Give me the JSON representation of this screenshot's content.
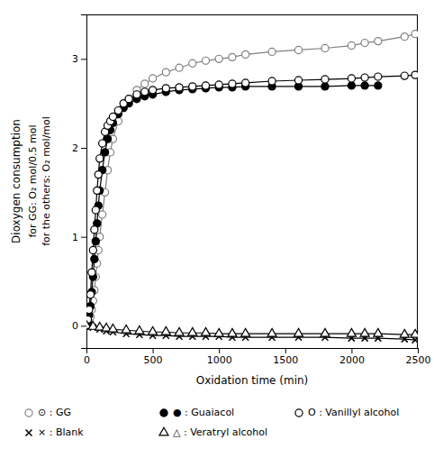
{
  "chart_data": {
    "type": "line",
    "xlabel": "Oxidation time (min)",
    "ylabel": [
      "Dioxygen consumption",
      "for GG: O₂ mol/0.5 mol",
      "for the others: O₂ mol/mol"
    ],
    "xlim": [
      0,
      2500
    ],
    "ylim": [
      -0.25,
      3.5
    ],
    "xticks": [
      0,
      500,
      1000,
      1500,
      2000,
      2500
    ],
    "yticks": [
      0,
      1,
      2,
      3
    ],
    "grid": false,
    "legend": "bottom",
    "series": [
      {
        "name": "⊙ : GG",
        "color": "gray",
        "marker": "circle-open",
        "x": [
          0,
          10,
          20,
          30,
          40,
          50,
          60,
          70,
          80,
          90,
          100,
          120,
          140,
          160,
          180,
          200,
          240,
          280,
          320,
          380,
          440,
          500,
          600,
          700,
          800,
          900,
          1000,
          1100,
          1200,
          1400,
          1600,
          1800,
          2000,
          2100,
          2200,
          2400,
          2480
        ],
        "values": [
          0,
          0.02,
          0.05,
          0.1,
          0.18,
          0.28,
          0.4,
          0.55,
          0.7,
          0.85,
          1.0,
          1.25,
          1.5,
          1.75,
          1.95,
          2.1,
          2.3,
          2.45,
          2.55,
          2.65,
          2.72,
          2.78,
          2.85,
          2.9,
          2.95,
          2.98,
          3.0,
          3.02,
          3.05,
          3.08,
          3.1,
          3.12,
          3.15,
          3.18,
          3.2,
          3.25,
          3.28
        ]
      },
      {
        "name": "● : Guaiacol",
        "color": "black",
        "marker": "circle",
        "x": [
          0,
          10,
          20,
          30,
          40,
          50,
          60,
          70,
          80,
          90,
          100,
          120,
          140,
          160,
          180,
          200,
          240,
          280,
          320,
          380,
          440,
          500,
          600,
          700,
          800,
          900,
          1000,
          1100,
          1200,
          1400,
          1600,
          1800,
          2000,
          2100,
          2200
        ],
        "values": [
          0,
          0.05,
          0.12,
          0.22,
          0.38,
          0.55,
          0.75,
          0.95,
          1.15,
          1.35,
          1.52,
          1.75,
          1.95,
          2.1,
          2.2,
          2.28,
          2.38,
          2.45,
          2.5,
          2.55,
          2.58,
          2.6,
          2.63,
          2.65,
          2.66,
          2.67,
          2.68,
          2.68,
          2.69,
          2.69,
          2.69,
          2.69,
          2.7,
          2.7,
          2.7
        ]
      },
      {
        "name": "O : Vanillyl alcohol",
        "color": "black",
        "marker": "circle-open",
        "x": [
          0,
          10,
          20,
          30,
          40,
          50,
          60,
          70,
          80,
          90,
          100,
          120,
          140,
          160,
          180,
          200,
          240,
          280,
          320,
          380,
          440,
          500,
          600,
          700,
          800,
          900,
          1000,
          1100,
          1200,
          1400,
          1600,
          1800,
          2000,
          2100,
          2200,
          2400,
          2480
        ],
        "values": [
          0,
          0.07,
          0.18,
          0.35,
          0.6,
          0.85,
          1.08,
          1.3,
          1.52,
          1.7,
          1.88,
          2.05,
          2.18,
          2.25,
          2.3,
          2.35,
          2.42,
          2.5,
          2.55,
          2.6,
          2.63,
          2.65,
          2.67,
          2.68,
          2.69,
          2.7,
          2.71,
          2.72,
          2.73,
          2.75,
          2.76,
          2.77,
          2.78,
          2.79,
          2.8,
          2.81,
          2.82
        ]
      },
      {
        "name": "× : Blank",
        "color": "black",
        "marker": "x",
        "x": [
          0,
          50,
          100,
          150,
          200,
          300,
          400,
          500,
          600,
          700,
          800,
          900,
          1000,
          1100,
          1200,
          1400,
          1600,
          1800,
          2000,
          2100,
          2200,
          2400,
          2480
        ],
        "values": [
          0,
          -0.02,
          -0.04,
          -0.06,
          -0.07,
          -0.09,
          -0.1,
          -0.11,
          -0.11,
          -0.12,
          -0.12,
          -0.12,
          -0.12,
          -0.13,
          -0.13,
          -0.13,
          -0.13,
          -0.13,
          -0.14,
          -0.14,
          -0.14,
          -0.15,
          -0.16
        ]
      },
      {
        "name": "△ : Veratryl alcohol",
        "color": "black",
        "marker": "triangle-open",
        "x": [
          0,
          50,
          100,
          150,
          200,
          300,
          400,
          500,
          600,
          700,
          800,
          900,
          1000,
          1100,
          1200,
          1400,
          1600,
          1800,
          2000,
          2100,
          2200,
          2400,
          2480
        ],
        "values": [
          0,
          -0.01,
          -0.02,
          -0.03,
          -0.04,
          -0.05,
          -0.06,
          -0.07,
          -0.07,
          -0.08,
          -0.08,
          -0.08,
          -0.09,
          -0.09,
          -0.09,
          -0.09,
          -0.09,
          -0.09,
          -0.09,
          -0.09,
          -0.09,
          -0.1,
          -0.1
        ]
      }
    ]
  }
}
